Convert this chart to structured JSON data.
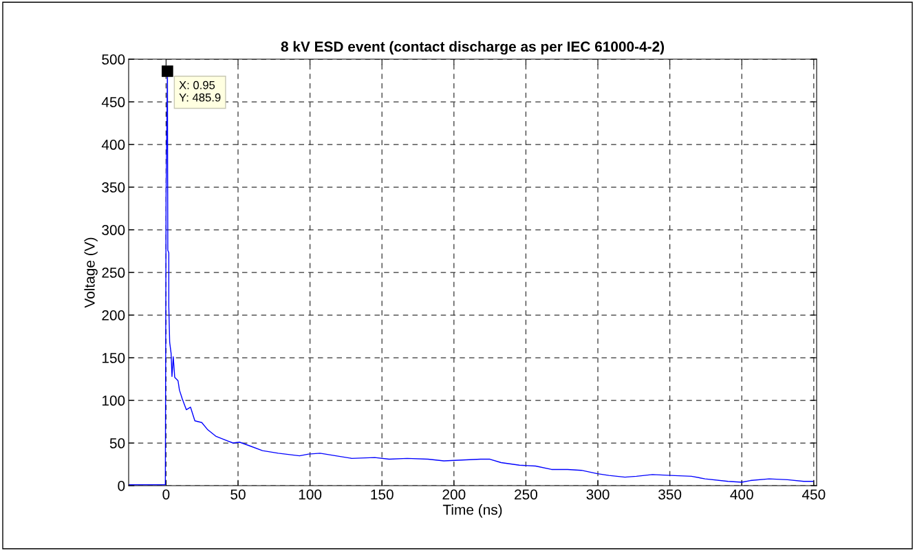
{
  "chart_data": {
    "type": "line",
    "title": "8 kV ESD event (contact discharge as per IEC 61000-4-2)",
    "xlabel": "Time (ns)",
    "ylabel": "Voltage (V)",
    "xlim": [
      -26,
      452
    ],
    "ylim": [
      0,
      500
    ],
    "xticks": [
      0,
      50,
      100,
      150,
      200,
      250,
      300,
      350,
      400,
      450
    ],
    "yticks": [
      0,
      50,
      100,
      150,
      200,
      250,
      300,
      350,
      400,
      450,
      500
    ],
    "grid": true,
    "legend": false,
    "marker": "none",
    "line_style": "solid",
    "annotations": [
      {
        "text": "X: 0.95\nY: 485.9",
        "x": 0.95,
        "y": 485.9
      }
    ],
    "series": [
      {
        "color": "#0000ff",
        "x": [
          -26,
          -0.5,
          0,
          0.95,
          1.2,
          1.9,
          1.9,
          2.5,
          3.5,
          4.1,
          5,
          6,
          8.3,
          9.3,
          11.2,
          14.1,
          17,
          20,
          24.8,
          28.7,
          34.5,
          42,
          46.5,
          51,
          57.6,
          67,
          78,
          92.7,
          99,
          107,
          118,
          129,
          145,
          155,
          167.5,
          182,
          193,
          205.7,
          218.5,
          225,
          232.8,
          245.5,
          256.7,
          267.8,
          279,
          288.5,
          299.7,
          307.6,
          318.8,
          326.8,
          337.9,
          350.6,
          365,
          374.5,
          390.4,
          400,
          406,
          419,
          431.8,
          443,
          449.4
        ],
        "values": [
          1,
          1,
          339,
          485.9,
          276,
          273,
          210,
          168,
          155,
          128,
          151,
          127,
          123,
          112,
          102,
          89,
          92,
          76,
          74,
          66,
          58,
          53,
          50,
          51,
          47,
          41,
          38,
          35,
          37,
          38,
          35,
          32,
          33,
          31,
          32,
          31,
          29,
          30,
          31,
          31,
          27,
          24,
          23,
          19,
          19,
          18,
          14,
          12,
          10,
          11,
          13,
          12,
          11,
          8,
          5,
          4,
          6,
          8,
          7,
          5,
          5
        ]
      }
    ]
  }
}
